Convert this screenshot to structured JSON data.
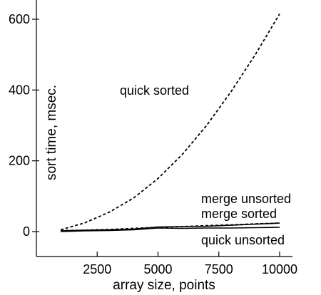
{
  "chart_data": {
    "type": "line",
    "title": "",
    "xlabel": "array size, points",
    "ylabel": "sort time, msec.",
    "xlim": [
      0,
      10000
    ],
    "ylim": [
      -35,
      650
    ],
    "x_ticks": [
      2500,
      5000,
      7500,
      10000
    ],
    "y_ticks": [
      0,
      200,
      400,
      600
    ],
    "grid": false,
    "series": [
      {
        "name": "quick sorted",
        "style": "dashed",
        "x": [
          1000,
          2000,
          3000,
          4000,
          5000,
          6000,
          7000,
          8000,
          9000,
          10000
        ],
        "y": [
          5,
          25,
          55,
          95,
          150,
          218,
          300,
          395,
          500,
          615
        ]
      },
      {
        "name": "merge unsorted",
        "style": "dashed",
        "x": [
          1000,
          2000,
          3000,
          4000,
          5000,
          6000,
          7000,
          8000,
          9000,
          10000
        ],
        "y": [
          3,
          4,
          6,
          9,
          12,
          14,
          17,
          19,
          22,
          24
        ]
      },
      {
        "name": "merge sorted",
        "style": "solid",
        "x": [
          1000,
          2000,
          3000,
          4000,
          5000,
          6000,
          7000,
          8000,
          9000,
          10000
        ],
        "y": [
          2,
          4,
          5,
          7,
          13,
          14,
          15,
          18,
          21,
          24
        ]
      },
      {
        "name": "quick unsorted",
        "style": "solid",
        "x": [
          1000,
          2000,
          3000,
          4000,
          5000,
          6000,
          7000,
          8000,
          9000,
          10000
        ],
        "y": [
          0,
          2,
          3,
          5,
          10,
          9,
          10,
          10,
          11,
          12
        ]
      }
    ]
  }
}
